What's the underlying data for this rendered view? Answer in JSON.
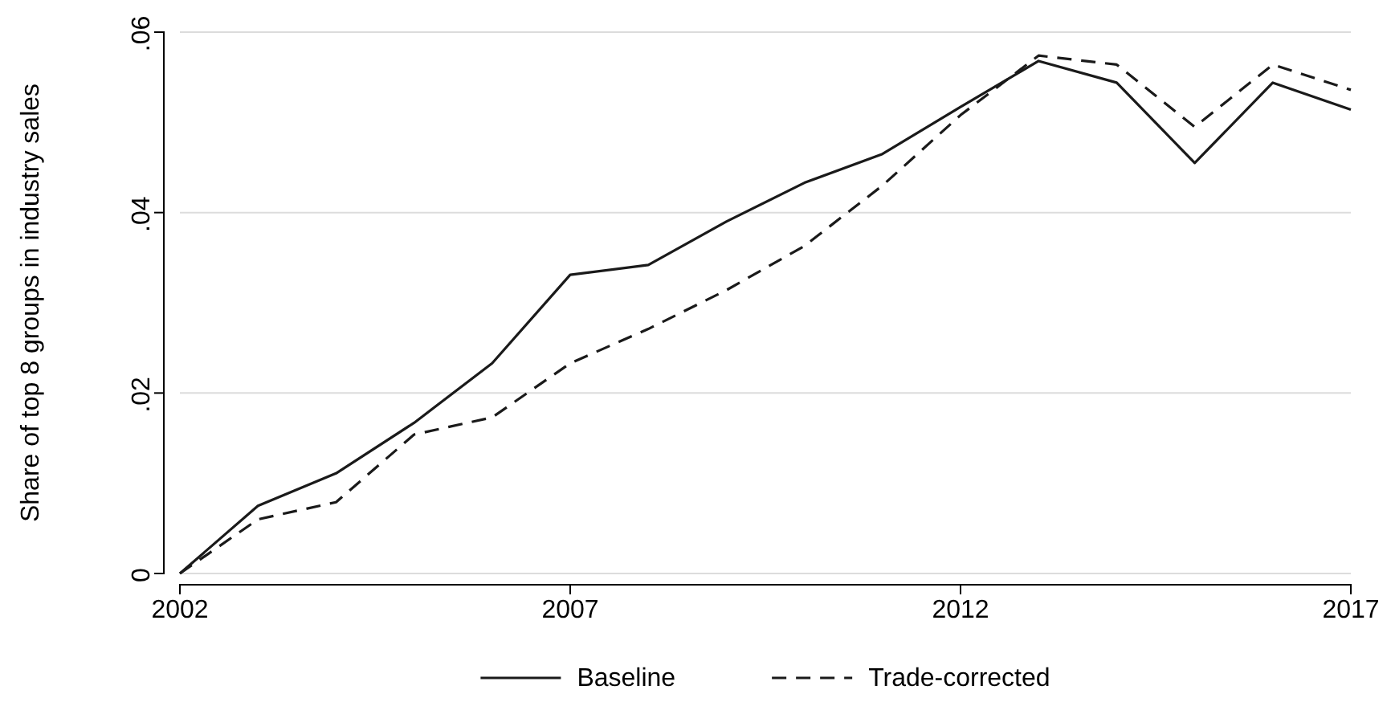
{
  "chart_data": {
    "type": "line",
    "ylabel": "Share of top 8 groups in industry sales",
    "x": [
      2002,
      2003,
      2004,
      2005,
      2006,
      2007,
      2008,
      2009,
      2010,
      2011,
      2012,
      2013,
      2014,
      2015,
      2016,
      2017
    ],
    "series": [
      {
        "name": "Baseline",
        "color": "#1a1a1a",
        "line_style": "solid",
        "values": [
          0,
          0.0075,
          0.0111,
          0.0167,
          0.0233,
          0.0331,
          0.0342,
          0.039,
          0.0433,
          0.0465,
          0.0517,
          0.0568,
          0.0544,
          0.0455,
          0.0544,
          0.0514
        ]
      },
      {
        "name": "Trade-corrected",
        "color": "#1a1a1a",
        "line_style": "dashed",
        "values": [
          0,
          0.006,
          0.0079,
          0.0154,
          0.0173,
          0.0233,
          0.0271,
          0.0314,
          0.0363,
          0.043,
          0.0508,
          0.0574,
          0.0564,
          0.0495,
          0.0564,
          0.0536
        ]
      }
    ],
    "xlim": [
      2002,
      2017
    ],
    "xticks": [
      2002,
      2007,
      2012,
      2017
    ],
    "ylim": [
      0,
      0.06
    ],
    "yticks": [
      {
        "value": 0,
        "label": "0"
      },
      {
        "value": 0.02,
        "label": ".02"
      },
      {
        "value": 0.04,
        "label": ".04"
      },
      {
        "value": 0.06,
        "label": ".06"
      }
    ],
    "grid": "y",
    "legend": "bottom",
    "marker": "none"
  }
}
